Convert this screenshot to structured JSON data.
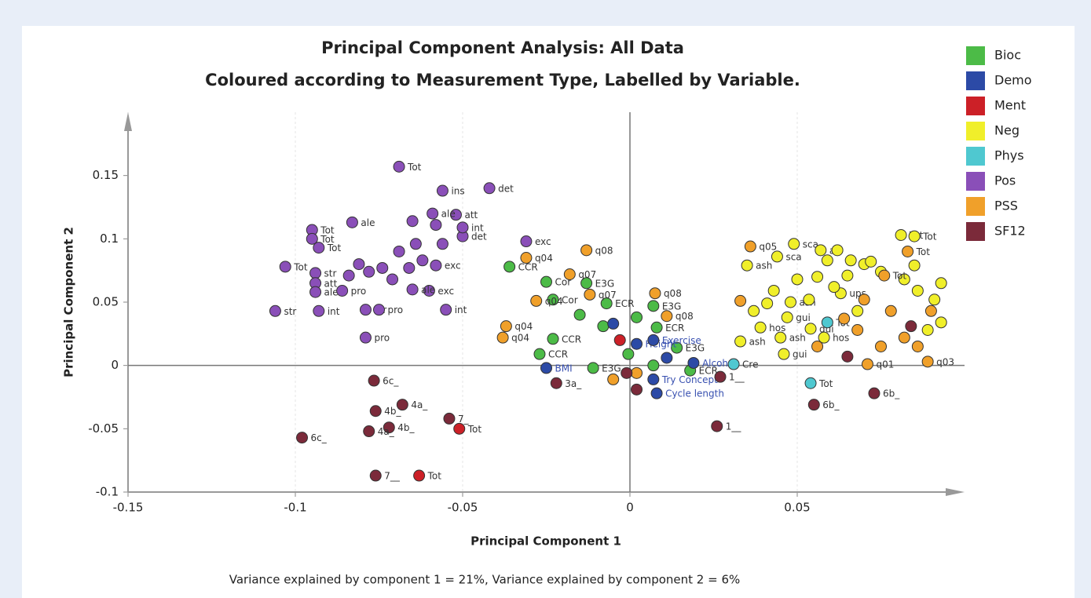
{
  "chart_data": {
    "type": "scatter",
    "title": "Principal Component Analysis: All Data",
    "subtitle": "Coloured according to Measurement Type, Labelled by Variable.",
    "x_label": "Principal Component 1",
    "y_label": "Principal Component 2",
    "note": "Variance explained by component 1 = 21%,   Variance explained by component 2 = 6%",
    "xlim": [
      -0.15,
      0.1
    ],
    "ylim": [
      -0.1,
      0.2
    ],
    "xticks": [
      -0.15,
      -0.1,
      -0.05,
      0,
      0.05
    ],
    "yticks": [
      -0.1,
      -0.05,
      0,
      0.05,
      0.1,
      0.15
    ],
    "grid": true,
    "zero_lines": true,
    "legend": "right",
    "series": [
      {
        "name": "Bioc",
        "color": "#4cbb47",
        "label_color": "#333333",
        "x": [
          -0.036,
          -0.025,
          -0.013,
          -0.023,
          -0.007,
          0.007,
          0.008,
          -0.023,
          0.014,
          0.018,
          -0.027,
          -0.011,
          0.002,
          -0.015,
          -0.008,
          -0.0005,
          0.007
        ],
        "y": [
          0.078,
          0.066,
          0.065,
          0.052,
          0.049,
          0.047,
          0.03,
          0.021,
          0.014,
          -0.004,
          0.009,
          -0.002,
          0.038,
          0.04,
          0.031,
          0.009,
          0.0
        ],
        "labels": [
          "CCR",
          "Cor",
          "E3G",
          "Cor",
          "ECR",
          "E3G",
          "ECR",
          "CCR",
          "E3G",
          "ECR",
          "CCR",
          "E3G",
          null,
          null,
          null,
          null,
          null
        ]
      },
      {
        "name": "Demo",
        "color": "#2c4aa6",
        "label_color": "#3850b0",
        "x": [
          -0.025,
          0.007,
          0.008,
          0.002,
          0.007,
          0.011,
          0.019,
          -0.005
        ],
        "y": [
          -0.002,
          -0.011,
          -0.022,
          0.017,
          0.02,
          0.006,
          0.002,
          0.033
        ],
        "labels": [
          "BMI",
          "Try Concept",
          "Cycle length",
          "Height",
          "Exercise",
          null,
          "Alcohol",
          null
        ]
      },
      {
        "name": "Ment",
        "color": "#cc2027",
        "label_color": "#333333",
        "x": [
          -0.051,
          -0.063,
          -0.003
        ],
        "y": [
          -0.05,
          -0.087,
          0.02
        ],
        "labels": [
          "Tot",
          "Tot",
          null
        ]
      },
      {
        "name": "Neg",
        "color": "#f0ef2a",
        "label_color": "#333333",
        "x": [
          0.081,
          0.085,
          0.049,
          0.044,
          0.035,
          0.057,
          0.063,
          0.048,
          0.047,
          0.039,
          0.054,
          0.045,
          0.046,
          0.058,
          0.033,
          0.056,
          0.061,
          0.065,
          0.07,
          0.075,
          0.082,
          0.086,
          0.091,
          0.093,
          0.05,
          0.0535,
          0.043,
          0.037,
          0.068,
          0.089,
          0.093,
          0.041,
          0.059,
          0.066,
          0.072,
          0.085,
          0.062
        ],
        "y": [
          0.103,
          0.102,
          0.096,
          0.086,
          0.079,
          0.091,
          0.057,
          0.05,
          0.038,
          0.03,
          0.029,
          0.022,
          0.009,
          0.022,
          0.019,
          0.07,
          0.062,
          0.071,
          0.08,
          0.074,
          0.068,
          0.059,
          0.052,
          0.065,
          0.068,
          0.052,
          0.059,
          0.043,
          0.043,
          0.028,
          0.034,
          0.049,
          0.083,
          0.083,
          0.082,
          0.079,
          0.091
        ],
        "labels": [
          "Tot",
          "Tot",
          "sca",
          "sca",
          "ash",
          "afr",
          "ups",
          "ash",
          "gui",
          "hos",
          "gui",
          "ash",
          "gui",
          "hos",
          "ash",
          null,
          null,
          null,
          null,
          null,
          null,
          null,
          null,
          null,
          null,
          null,
          null,
          null,
          null,
          null,
          null,
          null,
          null,
          null,
          null,
          null,
          null
        ]
      },
      {
        "name": "Phys",
        "color": "#4fc8d0",
        "label_color": "#333333",
        "x": [
          0.054,
          0.059,
          0.031
        ],
        "y": [
          -0.014,
          0.034,
          0.001
        ],
        "labels": [
          "Tot",
          "Tot",
          "Cre"
        ]
      },
      {
        "name": "Pos",
        "color": "#8a4fb8",
        "label_color": "#333333",
        "x": [
          -0.069,
          -0.056,
          -0.042,
          -0.095,
          -0.095,
          -0.093,
          -0.103,
          -0.106,
          -0.093,
          -0.094,
          -0.094,
          -0.094,
          -0.086,
          -0.079,
          -0.075,
          -0.079,
          -0.055,
          -0.06,
          -0.058,
          -0.031,
          -0.05,
          -0.05,
          -0.052,
          -0.059,
          -0.083,
          -0.065,
          -0.081,
          -0.078,
          -0.074,
          -0.071,
          -0.066,
          -0.084,
          -0.064,
          -0.056,
          -0.065,
          -0.058,
          -0.069,
          -0.062
        ],
        "y": [
          0.157,
          0.138,
          0.14,
          0.107,
          0.1,
          0.093,
          0.078,
          0.043,
          0.043,
          0.073,
          0.065,
          0.058,
          0.059,
          0.044,
          0.044,
          0.022,
          0.044,
          0.059,
          0.079,
          0.098,
          0.102,
          0.109,
          0.119,
          0.12,
          0.113,
          0.06,
          0.08,
          0.074,
          0.077,
          0.068,
          0.077,
          0.071,
          0.096,
          0.096,
          0.114,
          0.111,
          0.09,
          0.083
        ],
        "labels": [
          "Tot",
          "ins",
          "det",
          "Tot",
          "Tot",
          "Tot",
          "Tot",
          "str",
          "int",
          "str",
          "att",
          "ale",
          "pro",
          "str",
          "pro",
          "pro",
          "int",
          "exc",
          "exc",
          "exc",
          "det",
          "int",
          "att",
          "ale",
          "ale",
          "ale",
          null,
          null,
          null,
          null,
          null,
          null,
          null,
          null,
          null,
          null,
          null,
          null
        ]
      },
      {
        "name": "PSS",
        "color": "#f0a02a",
        "label_color": "#333333",
        "x": [
          -0.013,
          -0.031,
          -0.018,
          -0.012,
          -0.028,
          -0.037,
          -0.038,
          0.0075,
          0.011,
          0.036,
          0.071,
          0.089,
          0.076,
          0.083,
          0.033,
          0.07,
          0.078,
          0.082,
          0.086,
          0.064,
          0.09,
          0.075,
          0.068,
          0.056,
          0.002,
          -0.005
        ],
        "y": [
          0.091,
          0.085,
          0.072,
          0.056,
          0.051,
          0.031,
          0.022,
          0.057,
          0.039,
          0.094,
          0.001,
          0.003,
          0.071,
          0.09,
          0.051,
          0.052,
          0.043,
          0.022,
          0.015,
          0.037,
          0.043,
          0.015,
          0.028,
          0.015,
          -0.006,
          -0.011
        ],
        "labels": [
          "q08",
          "q04",
          "q07",
          "q07",
          "q04",
          "q04",
          "q04",
          "q08",
          "q08",
          "q05",
          "q01",
          "q03",
          "Tot",
          "Tot",
          null,
          null,
          null,
          null,
          null,
          null,
          null,
          null,
          null,
          null,
          null,
          null
        ]
      },
      {
        "name": "SF12",
        "color": "#7b2a3a",
        "label_color": "#333333",
        "x": [
          -0.0765,
          -0.098,
          -0.068,
          -0.076,
          -0.072,
          -0.078,
          -0.076,
          -0.054,
          0.027,
          0.026,
          0.065,
          0.055,
          0.073,
          -0.022,
          0.002,
          -0.001,
          0.084
        ],
        "y": [
          -0.012,
          -0.057,
          -0.031,
          -0.036,
          -0.049,
          -0.052,
          -0.087,
          -0.042,
          -0.009,
          -0.048,
          0.007,
          -0.031,
          -0.022,
          -0.014,
          -0.019,
          -0.006,
          0.031
        ],
        "labels": [
          "6c_",
          "6c_",
          "4a_",
          "4b_",
          "4b_",
          "4a_",
          "7__",
          "7_",
          "1__",
          "1__",
          null,
          "6b_",
          "6b_",
          "3a_",
          null,
          null,
          null
        ]
      }
    ]
  }
}
